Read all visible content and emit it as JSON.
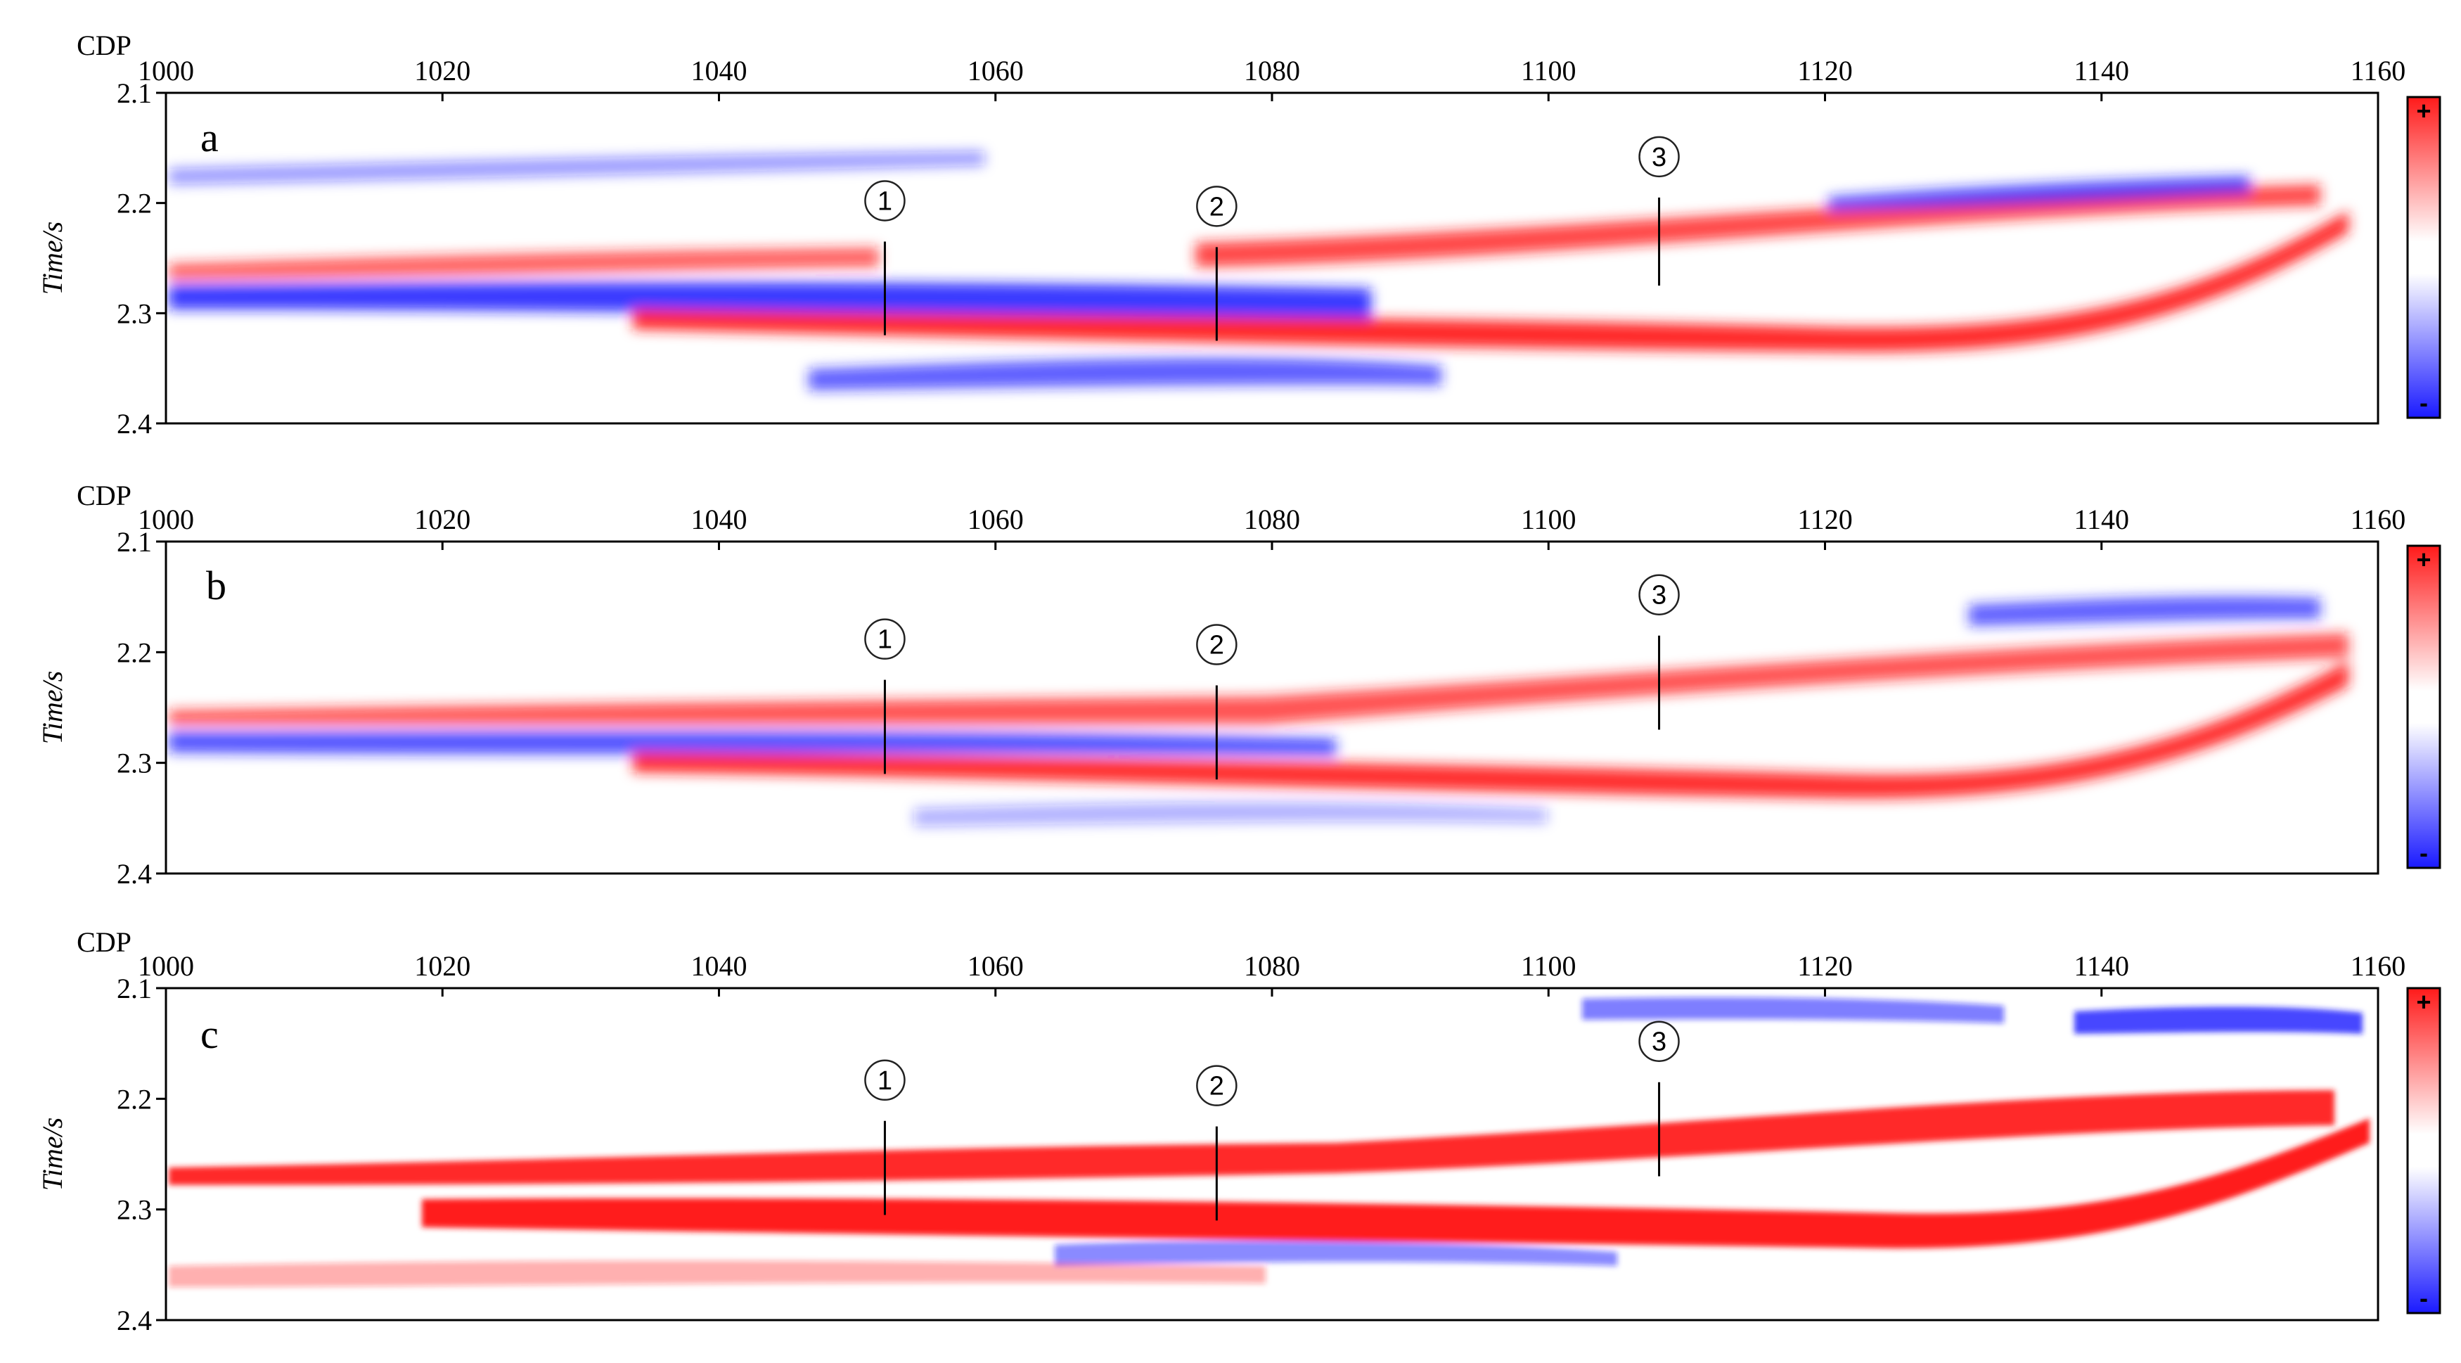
{
  "colors": {
    "positive": "#ff1a1a",
    "negative": "#1a1aff",
    "background": "#ffffff",
    "axis": "#000000"
  },
  "chart_data": [
    {
      "type": "heatmap",
      "panel_label": "a",
      "xlabel": "CDP",
      "ylabel": "Time/s",
      "x_ticks": [
        1000,
        1020,
        1040,
        1060,
        1080,
        1100,
        1120,
        1140,
        1160
      ],
      "y_ticks": [
        2.1,
        2.2,
        2.3,
        2.4
      ],
      "xlim": [
        1000,
        1160
      ],
      "ylim": [
        2.1,
        2.4
      ],
      "colorbar": {
        "top_label": "+",
        "bottom_label": "-"
      },
      "markers": [
        {
          "label": "1",
          "cdp": 1052,
          "t_start": 2.235,
          "t_end": 2.32
        },
        {
          "label": "2",
          "cdp": 1076,
          "t_start": 2.24,
          "t_end": 2.325
        },
        {
          "label": "3",
          "cdp": 1108,
          "t_start": 2.195,
          "t_end": 2.275
        }
      ]
    },
    {
      "type": "heatmap",
      "panel_label": "b",
      "xlabel": "CDP",
      "ylabel": "Time/s",
      "x_ticks": [
        1000,
        1020,
        1040,
        1060,
        1080,
        1100,
        1120,
        1140,
        1160
      ],
      "y_ticks": [
        2.1,
        2.2,
        2.3,
        2.4
      ],
      "xlim": [
        1000,
        1160
      ],
      "ylim": [
        2.1,
        2.4
      ],
      "colorbar": {
        "top_label": "+",
        "bottom_label": "-"
      },
      "markers": [
        {
          "label": "1",
          "cdp": 1052,
          "t_start": 2.225,
          "t_end": 2.31
        },
        {
          "label": "2",
          "cdp": 1076,
          "t_start": 2.23,
          "t_end": 2.315
        },
        {
          "label": "3",
          "cdp": 1108,
          "t_start": 2.185,
          "t_end": 2.27
        }
      ]
    },
    {
      "type": "heatmap",
      "panel_label": "c",
      "xlabel": "CDP",
      "ylabel": "Time/s",
      "x_ticks": [
        1000,
        1020,
        1040,
        1060,
        1080,
        1100,
        1120,
        1140,
        1160
      ],
      "y_ticks": [
        2.1,
        2.2,
        2.3,
        2.4
      ],
      "xlim": [
        1000,
        1160
      ],
      "ylim": [
        2.1,
        2.4
      ],
      "colorbar": {
        "top_label": "+",
        "bottom_label": "-"
      },
      "markers": [
        {
          "label": "1",
          "cdp": 1052,
          "t_start": 2.22,
          "t_end": 2.305
        },
        {
          "label": "2",
          "cdp": 1076,
          "t_start": 2.225,
          "t_end": 2.31
        },
        {
          "label": "3",
          "cdp": 1108,
          "t_start": 2.185,
          "t_end": 2.27
        }
      ]
    }
  ]
}
